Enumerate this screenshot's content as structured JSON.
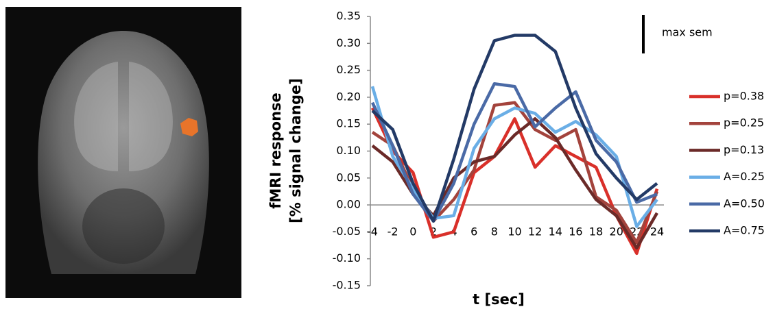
{
  "chart_data": {
    "type": "line",
    "y_label_lines": [
      "fMRI response",
      "[% signal change]"
    ],
    "x_label": "t [sec]",
    "annotation": "max sem",
    "x": [
      -4,
      -2,
      0,
      2,
      4,
      6,
      8,
      10,
      12,
      14,
      16,
      18,
      20,
      22,
      24
    ],
    "xlim": [
      -4,
      24
    ],
    "ylim": [
      -0.15,
      0.35
    ],
    "yticks": [
      0.35,
      {
        "value": 0.3,
        "label": "0.30"
      },
      0.25,
      {
        "value": 0.2,
        "label": "0.20"
      },
      0.15,
      {
        "value": 0.1,
        "label": "0.10"
      },
      0.05,
      {
        "value": 0,
        "label": "0.00"
      },
      -0.05,
      {
        "value": -0.1,
        "label": "-0.10"
      },
      -0.15
    ],
    "legend": "right",
    "series": [
      {
        "name": "p=0.38",
        "color": "#d9302a",
        "values": [
          0.18,
          0.1,
          0.06,
          -0.06,
          -0.05,
          0.06,
          0.09,
          0.16,
          0.07,
          0.11,
          0.09,
          0.07,
          -0.02,
          -0.09,
          0.03
        ]
      },
      {
        "name": "p=0.25",
        "color": "#a3433c",
        "values": [
          0.135,
          0.11,
          0.03,
          -0.03,
          0.01,
          0.065,
          0.185,
          0.19,
          0.14,
          0.12,
          0.14,
          0.015,
          -0.01,
          -0.07,
          0.025
        ]
      },
      {
        "name": "p=0.13",
        "color": "#6b2a28",
        "values": [
          0.11,
          0.08,
          0.02,
          -0.02,
          0.05,
          0.08,
          0.09,
          0.13,
          0.16,
          0.125,
          0.065,
          0.01,
          -0.02,
          -0.08,
          -0.015
        ]
      },
      {
        "name": "A=0.25",
        "color": "#6aaee6",
        "values": [
          0.22,
          0.09,
          0.03,
          -0.025,
          -0.02,
          0.105,
          0.16,
          0.18,
          0.17,
          0.135,
          0.155,
          0.13,
          0.09,
          -0.04,
          0.01
        ]
      },
      {
        "name": "A=0.50",
        "color": "#4a6aa6",
        "values": [
          0.19,
          0.11,
          0.02,
          -0.03,
          0.04,
          0.15,
          0.225,
          0.22,
          0.145,
          0.18,
          0.21,
          0.12,
          0.08,
          0.005,
          0.02
        ]
      },
      {
        "name": "A=0.75",
        "color": "#233a66",
        "values": [
          0.175,
          0.14,
          0.04,
          -0.03,
          0.085,
          0.215,
          0.305,
          0.315,
          0.315,
          0.285,
          0.18,
          0.095,
          0.05,
          0.01,
          0.04
        ]
      }
    ]
  }
}
